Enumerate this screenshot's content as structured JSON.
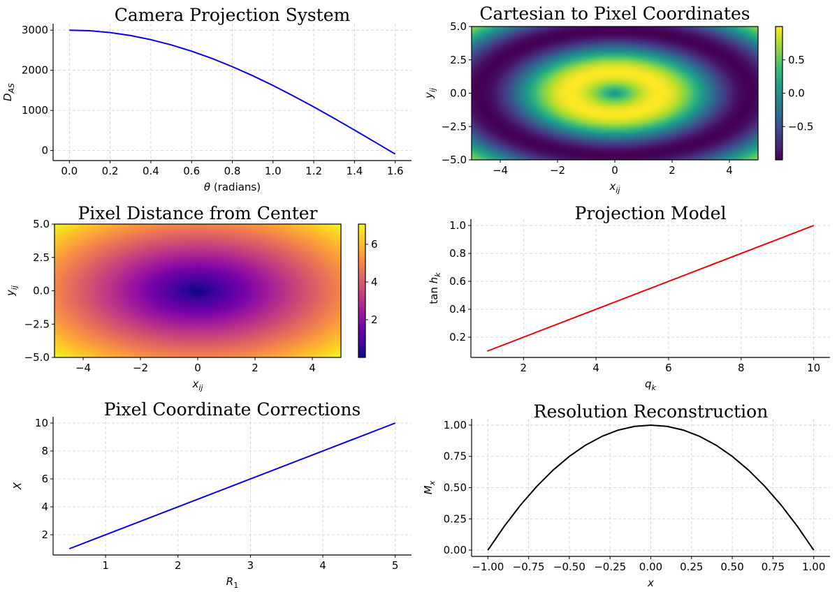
{
  "chart_data": [
    {
      "id": "p1",
      "type": "line",
      "title": "Camera Projection System",
      "xlabel": "θ (radians)",
      "ylabel": "D_AS",
      "xlim": [
        -0.08,
        1.68
      ],
      "ylim": [
        -250,
        3160
      ],
      "xticks": [
        0.0,
        0.2,
        0.4,
        0.6,
        0.8,
        1.0,
        1.2,
        1.4,
        1.6
      ],
      "xtick_labels": [
        "0.0",
        "0.2",
        "0.4",
        "0.6",
        "0.8",
        "1.0",
        "1.2",
        "1.4",
        "1.6"
      ],
      "yticks": [
        0,
        1000,
        2000,
        3000
      ],
      "ytick_labels": [
        "0",
        "1000",
        "2000",
        "3000"
      ],
      "grid": true,
      "series": [
        {
          "color": "#0000ff",
          "x": [
            0.0,
            0.1,
            0.2,
            0.3,
            0.4,
            0.5,
            0.6,
            0.7,
            0.8,
            0.9,
            1.0,
            1.1,
            1.2,
            1.3,
            1.4,
            1.5,
            1.6
          ],
          "y": [
            3000,
            2985,
            2940,
            2866,
            2763,
            2633,
            2476,
            2295,
            2090,
            1865,
            1621,
            1360,
            1087,
            802,
            510,
            212,
            -88
          ]
        }
      ]
    },
    {
      "id": "p2",
      "type": "heatmap",
      "title": "Cartesian to Pixel Coordinates",
      "xlabel": "x_ij",
      "ylabel": "y_ij",
      "xlim": [
        -5,
        5
      ],
      "ylim": [
        -5,
        5
      ],
      "xticks": [
        -4,
        -2,
        0,
        2,
        4
      ],
      "xtick_labels": [
        "−4",
        "−2",
        "0",
        "2",
        "4"
      ],
      "yticks": [
        -5,
        -2.5,
        0,
        2.5,
        5
      ],
      "ytick_labels": [
        "−5.0",
        "−2.5",
        "0.0",
        "2.5",
        "5.0"
      ],
      "function": "sin(sqrt(x^2 + y^2))",
      "colormap": "viridis",
      "vmin": -1,
      "vmax": 1,
      "colorbar_ticks": [
        -0.5,
        0,
        0.5
      ],
      "colorbar_tick_labels": [
        "−0.5",
        "0.0",
        "0.5"
      ]
    },
    {
      "id": "p3",
      "type": "heatmap",
      "title": "Pixel Distance from Center",
      "xlabel": "x_ij",
      "ylabel": "y_ij",
      "xlim": [
        -5,
        5
      ],
      "ylim": [
        -5,
        5
      ],
      "xticks": [
        -4,
        -2,
        0,
        2,
        4
      ],
      "xtick_labels": [
        "−4",
        "−2",
        "0",
        "2",
        "4"
      ],
      "yticks": [
        -5,
        -2.5,
        0,
        2.5,
        5
      ],
      "ytick_labels": [
        "−5.0",
        "−2.5",
        "0.0",
        "2.5",
        "5.0"
      ],
      "function": "sqrt(x^2 + y^2)",
      "colormap": "plasma",
      "vmin": 0,
      "vmax": 7.07,
      "colorbar_ticks": [
        2,
        4,
        6
      ],
      "colorbar_tick_labels": [
        "2",
        "4",
        "6"
      ]
    },
    {
      "id": "p4",
      "type": "line",
      "title": "Projection Model",
      "xlabel": "q_k",
      "ylabel": "tan h_k",
      "xlim": [
        0.55,
        10.45
      ],
      "ylim": [
        0.055,
        1.045
      ],
      "xticks": [
        2,
        4,
        6,
        8,
        10
      ],
      "xtick_labels": [
        "2",
        "4",
        "6",
        "8",
        "10"
      ],
      "yticks": [
        0.2,
        0.4,
        0.6,
        0.8,
        1.0
      ],
      "ytick_labels": [
        "0.2",
        "0.4",
        "0.6",
        "0.8",
        "1.0"
      ],
      "grid": true,
      "series": [
        {
          "color": "#ff0000",
          "x": [
            1,
            10
          ],
          "y": [
            0.1,
            1.0
          ]
        }
      ]
    },
    {
      "id": "p5",
      "type": "line",
      "title": "Pixel Coordinate Corrections",
      "xlabel": "R_1",
      "ylabel": "X",
      "xlim": [
        0.275,
        5.225
      ],
      "ylim": [
        0.55,
        10.45
      ],
      "xticks": [
        1,
        2,
        3,
        4,
        5
      ],
      "xtick_labels": [
        "1",
        "2",
        "3",
        "4",
        "5"
      ],
      "yticks": [
        2,
        4,
        6,
        8,
        10
      ],
      "ytick_labels": [
        "2",
        "4",
        "6",
        "8",
        "10"
      ],
      "grid": true,
      "series": [
        {
          "color": "#0000ff",
          "x": [
            0.5,
            5
          ],
          "y": [
            1,
            10
          ]
        }
      ]
    },
    {
      "id": "p6",
      "type": "line",
      "title": "Resolution Reconstruction",
      "xlabel": "x",
      "ylabel": "M_x",
      "xlim": [
        -1.1,
        1.1
      ],
      "ylim": [
        -0.05,
        1.05
      ],
      "xticks": [
        -1.0,
        -0.75,
        -0.5,
        -0.25,
        0.0,
        0.25,
        0.5,
        0.75,
        1.0
      ],
      "xtick_labels": [
        "−1.00",
        "−0.75",
        "−0.50",
        "−0.25",
        "0.00",
        "0.25",
        "0.50",
        "0.75",
        "1.00"
      ],
      "yticks": [
        0.0,
        0.25,
        0.5,
        0.75,
        1.0
      ],
      "ytick_labels": [
        "0.00",
        "0.25",
        "0.50",
        "0.75",
        "1.00"
      ],
      "grid": true,
      "series": [
        {
          "color": "#000000",
          "x": [
            -1.0,
            -0.9,
            -0.8,
            -0.7,
            -0.6,
            -0.5,
            -0.4,
            -0.3,
            -0.2,
            -0.1,
            0.0,
            0.1,
            0.2,
            0.3,
            0.4,
            0.5,
            0.6,
            0.7,
            0.8,
            0.9,
            1.0
          ],
          "y": [
            0.0,
            0.19,
            0.36,
            0.51,
            0.64,
            0.75,
            0.84,
            0.91,
            0.96,
            0.99,
            1.0,
            0.99,
            0.96,
            0.91,
            0.84,
            0.75,
            0.64,
            0.51,
            0.36,
            0.19,
            0.0
          ]
        }
      ]
    }
  ]
}
